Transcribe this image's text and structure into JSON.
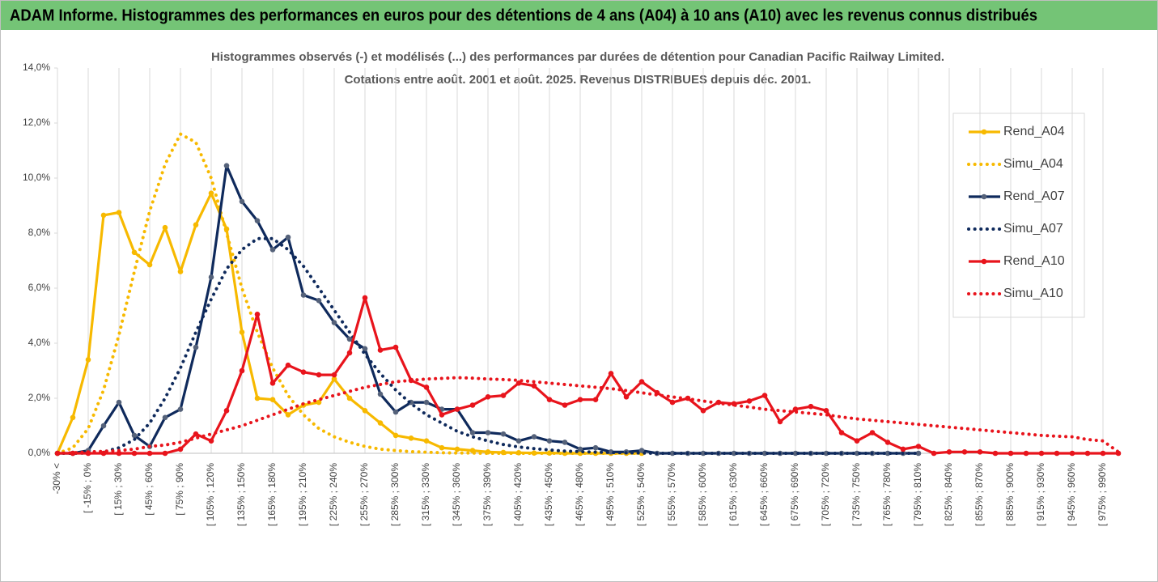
{
  "header": {
    "title": "ADAM Informe. Histogrammes des performances en euros pour des détentions de 4 ans (A04) à 10 ans (A10) avec les revenus connus distribués"
  },
  "chart_data": {
    "type": "line",
    "title": "Histogrammes observés (-) et modélisés (...) des performances par durées de détention pour Canadian Pacific Railway Limited.",
    "subtitle": "Cotations entre août. 2001 et août. 2025. Revenus DISTRIBUES depuis déc. 2001.",
    "categories": [
      "-30% <",
      null,
      "[ -15% ; 0%",
      null,
      "[ 15% ; 30%",
      null,
      "[ 45% ; 60%",
      null,
      "[ 75% ; 90%",
      null,
      "[ 105% ; 120%",
      null,
      "[ 135% ; 150%",
      null,
      "[ 165% ; 180%",
      null,
      "[ 195% ; 210%",
      null,
      "[ 225% ; 240%",
      null,
      "[ 255% ; 270%",
      null,
      "[ 285% ; 300%",
      null,
      "[ 315% ; 330%",
      null,
      "[ 345% ; 360%",
      null,
      "[ 375% ; 390%",
      null,
      "[ 405% ; 420%",
      null,
      "[ 435% ; 450%",
      null,
      "[ 465% ; 480%",
      null,
      "[ 495% ; 510%",
      null,
      "[ 525% ; 540%",
      null,
      "[ 555% ; 570%",
      null,
      "[ 585% ; 600%",
      null,
      "[ 615% ; 630%",
      null,
      "[ 645% ; 660%",
      null,
      "[ 675% ; 690%",
      null,
      "[ 705% ; 720%",
      null,
      "[ 735% ; 750%",
      null,
      "[ 765% ; 780%",
      null,
      "[ 795% ; 810%",
      null,
      "[ 825% ; 840%",
      null,
      "[ 855% ; 870%",
      null,
      "[ 885% ; 900%",
      null,
      "[ 915% ; 930%",
      null,
      "[ 945% ; 960%",
      null,
      "[ 975% ; 990%",
      null
    ],
    "series": [
      {
        "name": "Rend_A04",
        "color": "#f7b900",
        "style": "solid",
        "markers": true,
        "values": [
          0,
          1.3,
          3.4,
          8.65,
          8.75,
          7.3,
          6.85,
          8.2,
          6.6,
          8.3,
          9.45,
          8.15,
          4.4,
          2.0,
          1.95,
          1.4,
          1.75,
          1.85,
          2.7,
          2.0,
          1.55,
          1.1,
          0.65,
          0.55,
          0.45,
          0.2,
          0.15,
          0.1,
          0.05,
          0.03,
          0.02,
          0.01,
          0.01,
          0,
          0,
          0,
          0,
          0,
          0,
          null,
          null,
          null,
          null,
          null,
          null,
          null,
          null,
          null,
          null,
          null,
          null,
          null,
          null,
          null,
          null,
          null,
          null,
          null,
          null,
          null,
          null,
          null,
          null,
          null,
          null,
          null,
          null,
          null,
          null,
          null
        ]
      },
      {
        "name": "Simu_A04",
        "color": "#f7b900",
        "style": "dotted",
        "markers": false,
        "values": [
          0,
          0.2,
          0.9,
          2.3,
          4.3,
          6.6,
          8.8,
          10.5,
          11.6,
          11.3,
          10.0,
          8.0,
          6.0,
          4.4,
          3.1,
          2.1,
          1.4,
          0.9,
          0.6,
          0.4,
          0.25,
          0.15,
          0.1,
          0.06,
          0.04,
          0.02,
          0.01,
          0.01,
          0,
          0,
          0,
          0,
          0,
          0,
          0,
          0,
          0,
          0,
          0,
          null,
          null,
          null,
          null,
          null,
          null,
          null,
          null,
          null,
          null,
          null,
          null,
          null,
          null,
          null,
          null,
          null,
          null,
          null,
          null,
          null,
          null,
          null,
          null,
          null,
          null,
          null,
          null,
          null,
          null,
          null
        ]
      },
      {
        "name": "Rend_A07",
        "color": "#0f2a5c",
        "marker_color": "#55627a",
        "style": "solid",
        "markers": true,
        "values": [
          0,
          0,
          0.1,
          1.0,
          1.85,
          0.65,
          0.25,
          1.3,
          1.6,
          3.85,
          6.4,
          10.45,
          9.15,
          8.45,
          7.4,
          7.85,
          5.75,
          5.55,
          4.75,
          4.15,
          3.8,
          2.15,
          1.5,
          1.85,
          1.85,
          1.6,
          1.6,
          0.75,
          0.75,
          0.7,
          0.45,
          0.6,
          0.45,
          0.4,
          0.15,
          0.2,
          0.05,
          0.05,
          0.1,
          0,
          0,
          0,
          0,
          0,
          0,
          0,
          0,
          0,
          0,
          0,
          0,
          0,
          0,
          0,
          0,
          0,
          0,
          null,
          null,
          null,
          null,
          null,
          null,
          null,
          null,
          null,
          null,
          null,
          null,
          null
        ]
      },
      {
        "name": "Simu_A07",
        "color": "#0f2a5c",
        "style": "dotted",
        "markers": false,
        "values": [
          0,
          0,
          0.01,
          0.05,
          0.2,
          0.5,
          1.1,
          2.0,
          3.1,
          4.4,
          5.6,
          6.7,
          7.4,
          7.8,
          7.8,
          7.4,
          6.8,
          6.0,
          5.2,
          4.4,
          3.6,
          2.9,
          2.3,
          1.8,
          1.4,
          1.1,
          0.8,
          0.6,
          0.45,
          0.32,
          0.23,
          0.17,
          0.12,
          0.08,
          0.06,
          0.04,
          0.03,
          0.02,
          0.01,
          0,
          0,
          0,
          0,
          0,
          0,
          0,
          0,
          0,
          0,
          0,
          0,
          0,
          0,
          0,
          0,
          0,
          0,
          null,
          null,
          null,
          null,
          null,
          null,
          null,
          null,
          null,
          null,
          null,
          null,
          null
        ]
      },
      {
        "name": "Rend_A10",
        "color": "#e8141c",
        "style": "solid",
        "markers": true,
        "values": [
          0,
          0,
          0,
          0,
          0,
          0,
          0,
          0,
          0.15,
          0.7,
          0.45,
          1.55,
          3.0,
          5.05,
          2.55,
          3.2,
          2.95,
          2.85,
          2.85,
          3.65,
          5.65,
          3.75,
          3.85,
          2.65,
          2.4,
          1.4,
          1.6,
          1.75,
          2.05,
          2.1,
          2.55,
          2.45,
          1.95,
          1.75,
          1.95,
          1.95,
          2.9,
          2.05,
          2.6,
          2.2,
          1.85,
          2.0,
          1.55,
          1.85,
          1.8,
          1.9,
          2.1,
          1.15,
          1.6,
          1.7,
          1.55,
          0.75,
          0.45,
          0.75,
          0.4,
          0.15,
          0.25,
          0,
          0.05,
          0.05,
          0.05,
          0,
          0,
          0,
          0,
          0,
          0,
          0,
          0,
          0
        ]
      },
      {
        "name": "Simu_A10",
        "color": "#e8141c",
        "style": "dotted",
        "markers": false,
        "values": [
          0,
          0.02,
          0.05,
          0.07,
          0.1,
          0.15,
          0.25,
          0.3,
          0.4,
          0.55,
          0.7,
          0.85,
          1.0,
          1.2,
          1.4,
          1.6,
          1.8,
          1.95,
          2.1,
          2.25,
          2.4,
          2.5,
          2.6,
          2.65,
          2.7,
          2.72,
          2.75,
          2.73,
          2.7,
          2.68,
          2.65,
          2.6,
          2.55,
          2.5,
          2.45,
          2.4,
          2.35,
          2.28,
          2.2,
          2.12,
          2.05,
          1.98,
          1.9,
          1.82,
          1.75,
          1.68,
          1.6,
          1.55,
          1.5,
          1.45,
          1.4,
          1.32,
          1.25,
          1.2,
          1.15,
          1.1,
          1.05,
          1.0,
          0.95,
          0.9,
          0.85,
          0.8,
          0.75,
          0.7,
          0.65,
          0.62,
          0.6,
          0.5,
          0.45,
          0.05
        ]
      }
    ],
    "ylim": [
      0,
      14
    ],
    "yticks": [
      {
        "value": 0,
        "label": "0,0%"
      },
      {
        "value": 2,
        "label": "2,0%"
      },
      {
        "value": 4,
        "label": "4,0%"
      },
      {
        "value": 6,
        "label": "6,0%"
      },
      {
        "value": 8,
        "label": "8,0%"
      },
      {
        "value": 10,
        "label": "10,0%"
      },
      {
        "value": 12,
        "label": "12,0%"
      },
      {
        "value": 14,
        "label": "14,0%"
      }
    ],
    "xgrid": true,
    "legend": "right"
  }
}
